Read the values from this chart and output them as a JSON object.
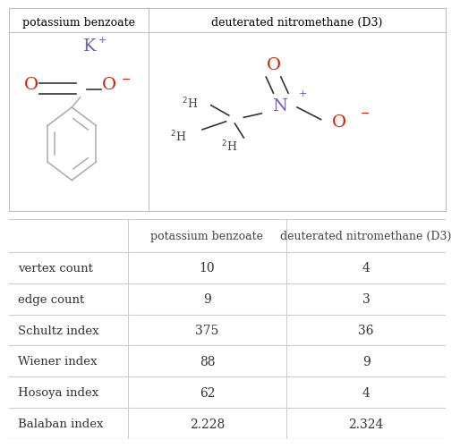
{
  "col_headers": [
    "",
    "potassium benzoate",
    "deuterated nitromethane (D3)"
  ],
  "rows": [
    [
      "vertex count",
      "10",
      "4"
    ],
    [
      "edge count",
      "9",
      "3"
    ],
    [
      "Schultz index",
      "375",
      "36"
    ],
    [
      "Wiener index",
      "88",
      "9"
    ],
    [
      "Hosoya index",
      "62",
      "4"
    ],
    [
      "Balaban index",
      "2.228",
      "2.324"
    ]
  ],
  "molecule_headers": [
    "potassium benzoate",
    "deuterated nitromethane (D3)"
  ],
  "background_color": "#ffffff",
  "table_line_color": "#cccccc",
  "border_color": "#bbbbbb",
  "fig_width": 4.88,
  "fig_height": 4.82,
  "purple_color": "#7060aa",
  "red_color": "#cc2200",
  "bond_color_gray": "#aaaaaa",
  "bond_color_black": "#333333",
  "font_family": "DejaVu Serif"
}
